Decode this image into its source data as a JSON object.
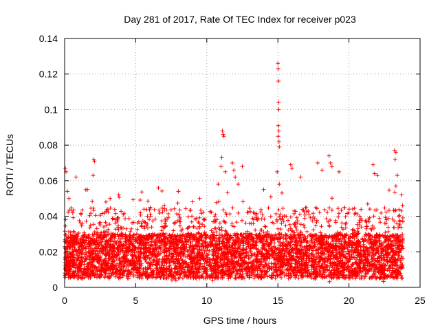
{
  "chart_data": {
    "type": "scatter",
    "title": "Day 281 of 2017, Rate Of TEC Index for receiver p023",
    "xlabel": "GPS time / hours",
    "ylabel": "ROTI / TECUs",
    "xlim": [
      0,
      25
    ],
    "ylim": [
      0,
      0.14
    ],
    "xticks": [
      0,
      5,
      10,
      15,
      20,
      25
    ],
    "yticks": [
      0,
      0.02,
      0.04,
      0.06,
      0.08,
      0.1,
      0.12,
      0.14
    ],
    "ytick_labels": [
      "0",
      "0.02",
      "0.04",
      "0.06",
      "0.08",
      "0.1",
      "0.12",
      "0.14"
    ],
    "grid": true,
    "marker": "+",
    "color": "#ff0000",
    "x_data_range": [
      0,
      23.8
    ],
    "typical_band": [
      0.005,
      0.03
    ],
    "notable_points": [
      {
        "x": 0.05,
        "y": 0.067
      },
      {
        "x": 0.1,
        "y": 0.065
      },
      {
        "x": 0.2,
        "y": 0.054
      },
      {
        "x": 0.3,
        "y": 0.05
      },
      {
        "x": 0.8,
        "y": 0.062
      },
      {
        "x": 1.6,
        "y": 0.055
      },
      {
        "x": 2.05,
        "y": 0.072
      },
      {
        "x": 2.1,
        "y": 0.071
      },
      {
        "x": 2.0,
        "y": 0.063
      },
      {
        "x": 3.2,
        "y": 0.05
      },
      {
        "x": 3.8,
        "y": 0.052
      },
      {
        "x": 6.6,
        "y": 0.056
      },
      {
        "x": 8.0,
        "y": 0.054
      },
      {
        "x": 9.5,
        "y": 0.05
      },
      {
        "x": 10.8,
        "y": 0.058
      },
      {
        "x": 11.1,
        "y": 0.088
      },
      {
        "x": 11.15,
        "y": 0.086
      },
      {
        "x": 11.2,
        "y": 0.085
      },
      {
        "x": 11.05,
        "y": 0.073
      },
      {
        "x": 11.0,
        "y": 0.068
      },
      {
        "x": 11.3,
        "y": 0.065
      },
      {
        "x": 11.8,
        "y": 0.07
      },
      {
        "x": 11.9,
        "y": 0.066
      },
      {
        "x": 12.0,
        "y": 0.062
      },
      {
        "x": 12.2,
        "y": 0.058
      },
      {
        "x": 12.5,
        "y": 0.068
      },
      {
        "x": 14.0,
        "y": 0.055
      },
      {
        "x": 15.0,
        "y": 0.126
      },
      {
        "x": 15.02,
        "y": 0.123
      },
      {
        "x": 15.04,
        "y": 0.116
      },
      {
        "x": 15.05,
        "y": 0.104
      },
      {
        "x": 15.06,
        "y": 0.1
      },
      {
        "x": 15.03,
        "y": 0.091
      },
      {
        "x": 15.07,
        "y": 0.088
      },
      {
        "x": 15.02,
        "y": 0.085
      },
      {
        "x": 15.08,
        "y": 0.082
      },
      {
        "x": 15.1,
        "y": 0.079
      },
      {
        "x": 14.95,
        "y": 0.065
      },
      {
        "x": 15.1,
        "y": 0.058
      },
      {
        "x": 15.9,
        "y": 0.069
      },
      {
        "x": 16.0,
        "y": 0.067
      },
      {
        "x": 16.6,
        "y": 0.062
      },
      {
        "x": 17.8,
        "y": 0.07
      },
      {
        "x": 18.1,
        "y": 0.066
      },
      {
        "x": 18.6,
        "y": 0.074
      },
      {
        "x": 18.7,
        "y": 0.07
      },
      {
        "x": 18.8,
        "y": 0.068
      },
      {
        "x": 19.3,
        "y": 0.065
      },
      {
        "x": 21.7,
        "y": 0.069
      },
      {
        "x": 21.8,
        "y": 0.064
      },
      {
        "x": 22.0,
        "y": 0.063
      },
      {
        "x": 23.2,
        "y": 0.077
      },
      {
        "x": 23.3,
        "y": 0.076
      },
      {
        "x": 23.25,
        "y": 0.072
      },
      {
        "x": 23.4,
        "y": 0.063
      },
      {
        "x": 23.3,
        "y": 0.057
      },
      {
        "x": 23.7,
        "y": 0.052
      }
    ]
  }
}
